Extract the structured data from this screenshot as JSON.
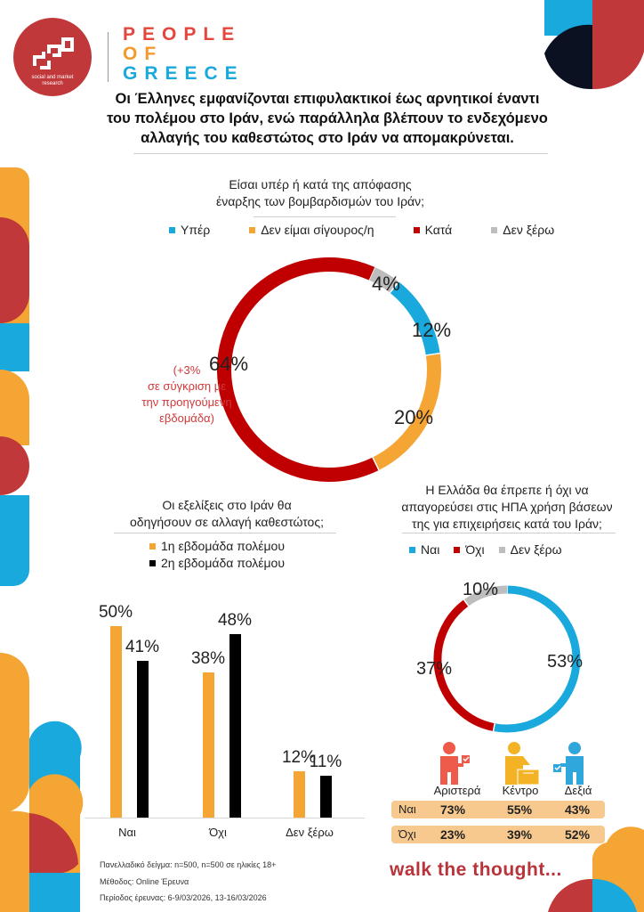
{
  "brand": {
    "logo_tagline": [
      "social and market",
      "research"
    ],
    "name_lines": [
      "PEOPLE",
      "OF",
      "GREECE"
    ]
  },
  "headline": "Οι Έλληνες εμφανίζονται επιφυλακτικοί έως αρνητικοί έναντι του πολέμου στο Ιράν, ενώ παράλληλα βλέπουν το ενδεχόμενο αλλαγής του καθεστώτος στο Ιράν να απομακρύνεται.",
  "colors": {
    "red": "#c00000",
    "blue": "#1aa9dd",
    "orange": "#f5a533",
    "grey": "#bdbdbd",
    "black": "#000000",
    "brand_red": "#c0383a"
  },
  "chart_data": [
    {
      "type": "pie",
      "variant": "donut",
      "title": "Είσαι υπέρ ή κατά της απόφασης έναρξης των βομβαρδισμών του Ιράν;",
      "title_lines": [
        "Είσαι υπέρ ή κατά της απόφασης",
        "έναρξης των βομβαρδισμών του Ιράν;"
      ],
      "legend_position": "top",
      "categories": [
        "Υπέρ",
        "Δεν είμαι σίγουρος/η",
        "Κατά",
        "Δεν ξέρω"
      ],
      "values": [
        12,
        20,
        64,
        4
      ],
      "labels": [
        "12%",
        "20%",
        "64%",
        "4%"
      ],
      "annotation_lines": [
        "(+3%",
        "σε σύγκριση με",
        "την προηγούμενη",
        "εβδομάδα)"
      ]
    },
    {
      "type": "bar",
      "title": "Οι εξελίξεις στο Ιράν θα οδηγήσουν σε αλλαγή καθεστώτος;",
      "title_lines": [
        "Οι εξελίξεις στο Ιράν θα",
        "οδηγήσουν σε αλλαγή καθεστώτος;"
      ],
      "legend_position": "top",
      "categories": [
        "Ναι",
        "Όχι",
        "Δεν ξέρω"
      ],
      "series": [
        {
          "name": "1η εβδομάδα πολέμου",
          "values": [
            50,
            38,
            12
          ],
          "labels": [
            "50%",
            "38%",
            "12%"
          ]
        },
        {
          "name": "2η εβδομάδα πολέμου",
          "values": [
            41,
            48,
            11
          ],
          "labels": [
            "41%",
            "48%",
            "11%"
          ]
        }
      ],
      "ylim": [
        0,
        50
      ],
      "grid": false
    },
    {
      "type": "pie",
      "variant": "donut",
      "title": "Η Ελλάδα θα έπρεπε ή όχι να απαγορεύσει στις ΗΠΑ χρήση βάσεων της για επιχειρήσεις κατά του Ιράν;",
      "title_lines": [
        "Η Ελλάδα θα έπρεπε ή όχι να",
        "απαγορεύσει στις ΗΠΑ χρήση βάσεων",
        "της για επιχειρήσεις κατά του Ιράν;"
      ],
      "legend_position": "top",
      "categories": [
        "Ναι",
        "Όχι",
        "Δεν ξέρω"
      ],
      "values": [
        53,
        37,
        10
      ],
      "labels": [
        "53%",
        "37%",
        "10%"
      ]
    },
    {
      "type": "table",
      "columns": [
        "Αριστερά",
        "Κέντρο",
        "Δεξιά"
      ],
      "rows": [
        {
          "label": "Ναι",
          "values": [
            "73%",
            "55%",
            "43%"
          ]
        },
        {
          "label": "Όχι",
          "values": [
            "23%",
            "39%",
            "52%"
          ]
        }
      ]
    }
  ],
  "footer": {
    "sample": "Πανελλαδικό δείγμα: n=500, n=500 σε ηλικίες 18+",
    "method": "Μέθοδος: Online Έρευνα",
    "period": "Περίοδος έρευνας: 6-9/03/2026, 13-16/03/2026",
    "tagline": "walk the thought..."
  }
}
